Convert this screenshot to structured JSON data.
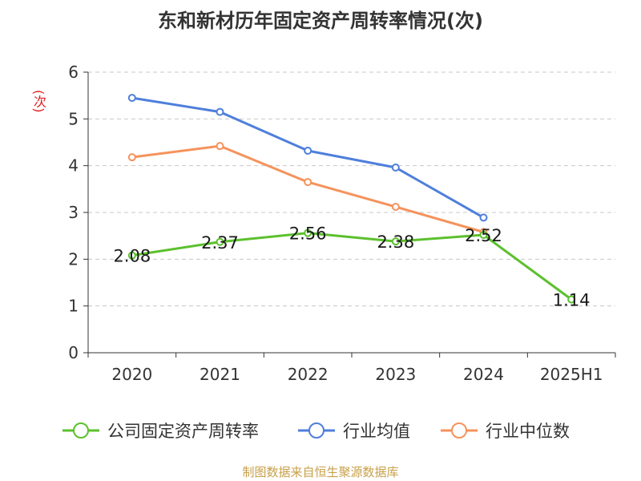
{
  "chart_data": {
    "type": "line",
    "title": "东和新材历年固定资产周转率情况(次)",
    "ylabel": "(次)",
    "xlabel": "",
    "categories": [
      "2020",
      "2021",
      "2022",
      "2023",
      "2024",
      "2025H1"
    ],
    "ylim": [
      0,
      6
    ],
    "yticks": [
      0,
      1,
      2,
      3,
      4,
      5,
      6
    ],
    "grid": true,
    "legend_position": "bottom",
    "series": [
      {
        "name": "公司固定资产周转率",
        "color": "#5cc02e",
        "values": [
          2.08,
          2.37,
          2.56,
          2.38,
          2.52,
          1.14
        ],
        "labels": [
          "2.08",
          "2.37",
          "2.56",
          "2.38",
          "2.52",
          "1.14"
        ]
      },
      {
        "name": "行业均值",
        "color": "#4e7fdb",
        "values": [
          5.45,
          5.15,
          4.32,
          3.96,
          2.89,
          null
        ]
      },
      {
        "name": "行业中位数",
        "color": "#f5935c",
        "values": [
          4.18,
          4.42,
          3.65,
          3.12,
          2.58,
          null
        ]
      }
    ]
  },
  "source": "制图数据来自恒生聚源数据库"
}
